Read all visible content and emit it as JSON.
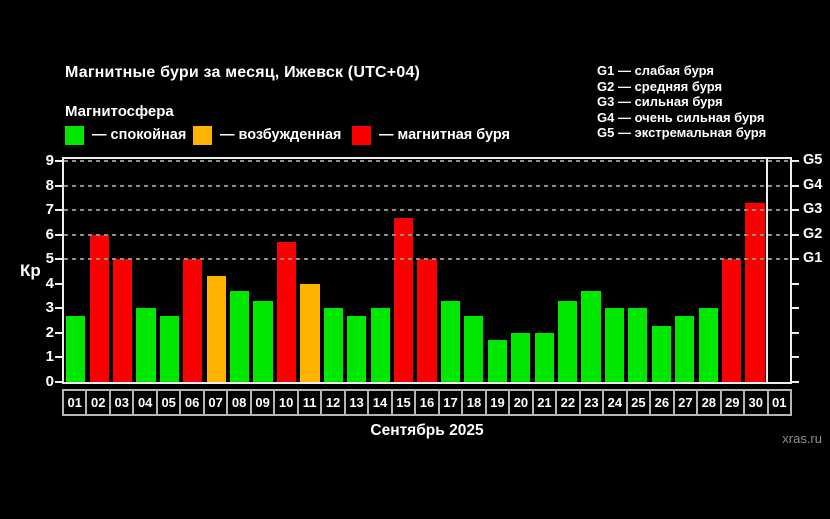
{
  "header": {
    "title": "Магнитные бури за месяц, Ижевск (UTC+04)",
    "subtitle": "Магнитосфера",
    "legend": [
      {
        "name": "quiet",
        "label": "— спокойная",
        "color": "#00e800"
      },
      {
        "name": "excited",
        "label": "— возбужденная",
        "color": "#ffb300"
      },
      {
        "name": "storm",
        "label": "— магнитная буря",
        "color": "#fb0000"
      }
    ],
    "g_scale": [
      "G1 — слабая буря",
      "G2 — средняя буря",
      "G3 — сильная буря",
      "G4 — очень сильная буря",
      "G5 — экстремальная буря"
    ]
  },
  "footer": {
    "month_label": "Сентябрь 2025",
    "watermark": "xras.ru"
  },
  "chart_data": {
    "type": "bar",
    "title": "Магнитные бури за месяц, Ижевск (UTC+04)",
    "xlabel": "Сентябрь 2025",
    "ylabel": "Кр",
    "ylim": [
      0,
      9
    ],
    "y_ticks": [
      0,
      1,
      2,
      3,
      4,
      5,
      6,
      7,
      8,
      9
    ],
    "gridlines_at": [
      5,
      6,
      7,
      8,
      9
    ],
    "grid": "dotted",
    "legend_position": "top-left",
    "right_axis_labels": [
      {
        "kp": 5,
        "label": "G1"
      },
      {
        "kp": 6,
        "label": "G2"
      },
      {
        "kp": 7,
        "label": "G3"
      },
      {
        "kp": 8,
        "label": "G4"
      },
      {
        "kp": 9,
        "label": "G5"
      }
    ],
    "categories": [
      "01",
      "02",
      "03",
      "04",
      "05",
      "06",
      "07",
      "08",
      "09",
      "10",
      "11",
      "12",
      "13",
      "14",
      "15",
      "16",
      "17",
      "18",
      "19",
      "20",
      "21",
      "22",
      "23",
      "24",
      "25",
      "26",
      "27",
      "28",
      "29",
      "30",
      "01"
    ],
    "values": [
      2.7,
      6.0,
      5.0,
      3.0,
      2.7,
      5.0,
      4.3,
      3.7,
      3.3,
      5.7,
      4.0,
      3.0,
      2.7,
      3.0,
      6.7,
      5.0,
      3.3,
      2.7,
      1.7,
      2.0,
      2.0,
      3.3,
      3.7,
      3.0,
      3.0,
      2.3,
      2.7,
      3.0,
      5.0,
      7.3,
      null
    ],
    "statuses": [
      "quiet",
      "storm",
      "storm",
      "quiet",
      "quiet",
      "storm",
      "excited",
      "quiet",
      "quiet",
      "storm",
      "excited",
      "quiet",
      "quiet",
      "quiet",
      "storm",
      "storm",
      "quiet",
      "quiet",
      "quiet",
      "quiet",
      "quiet",
      "quiet",
      "quiet",
      "quiet",
      "quiet",
      "quiet",
      "quiet",
      "quiet",
      "storm",
      "storm",
      null
    ],
    "status_colors": {
      "quiet": "#00e800",
      "excited": "#ffb300",
      "storm": "#fb0000"
    },
    "month_separator_after_index": 29
  }
}
